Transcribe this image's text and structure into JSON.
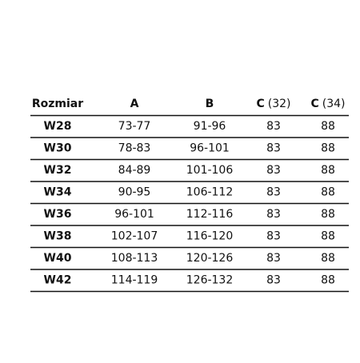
{
  "table": {
    "header": [
      [
        "Rozmiar"
      ],
      [
        "A"
      ],
      [
        "B"
      ],
      [
        "C",
        "(32)"
      ],
      [
        "C",
        "(34)"
      ]
    ],
    "rows": [
      [
        "W28",
        "73-77",
        "91-96",
        "83",
        "88"
      ],
      [
        "W30",
        "78-83",
        "96-101",
        "83",
        "88"
      ],
      [
        "W32",
        "84-89",
        "101-106",
        "83",
        "88"
      ],
      [
        "W34",
        "90-95",
        "106-112",
        "83",
        "88"
      ],
      [
        "W36",
        "96-101",
        "112-116",
        "83",
        "88"
      ],
      [
        "W38",
        "102-107",
        "116-120",
        "83",
        "88"
      ],
      [
        "W40",
        "108-113",
        "120-126",
        "83",
        "88"
      ],
      [
        "W42",
        "114-119",
        "126-132",
        "83",
        "88"
      ]
    ]
  }
}
